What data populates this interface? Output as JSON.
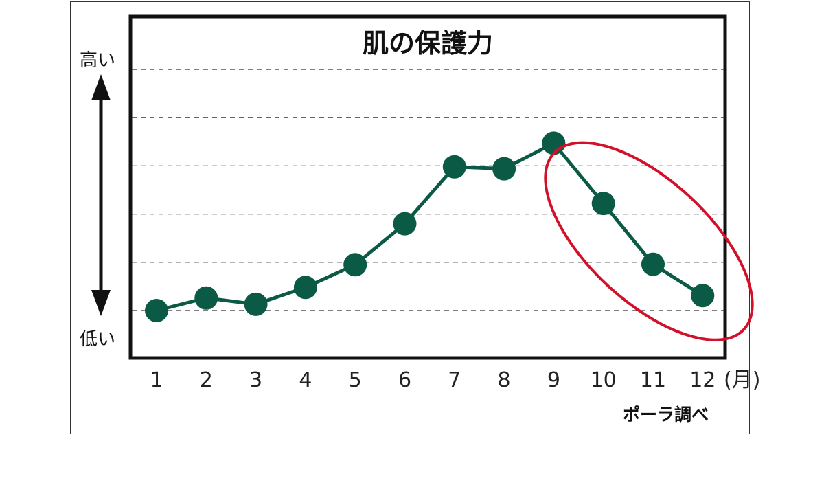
{
  "chart_data": {
    "type": "line",
    "title": "肌の保護力",
    "x": [
      "1",
      "2",
      "3",
      "4",
      "5",
      "6",
      "7",
      "8",
      "9",
      "10",
      "11",
      "12"
    ],
    "x_unit": "(月)",
    "series": [
      {
        "values": [
          0.0,
          0.26,
          0.13,
          0.48,
          0.95,
          1.8,
          2.98,
          2.94,
          3.47,
          2.22,
          0.96,
          0.31
        ]
      }
    ],
    "ylim": [
      -1,
      5
    ],
    "y_gridlines": [
      0,
      1,
      2,
      3,
      4,
      5
    ],
    "y_high_label": "高い",
    "y_low_label": "低い",
    "source": "ポーラ調べ",
    "grid": true,
    "highlight": {
      "from_month": "10",
      "to_month": "12"
    },
    "colors": {
      "line": "#0b5a46",
      "marker": "#0b5a46",
      "highlight": "#d3102a",
      "grid": "#333333"
    }
  }
}
